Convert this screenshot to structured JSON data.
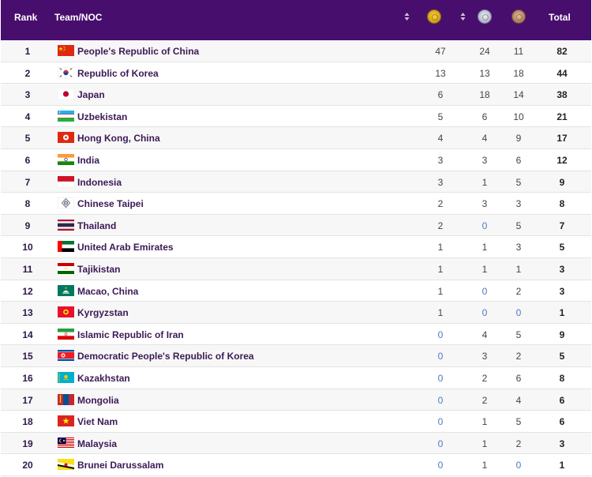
{
  "header": {
    "rank": "Rank",
    "team": "Team/NOC",
    "total": "Total"
  },
  "colors": {
    "header_bg": "#480e6e",
    "zero_value": "#4a7cc0"
  },
  "rows": [
    {
      "rank": "1",
      "team": "People's Republic of China",
      "flag": "china-flag-icon",
      "gold": "47",
      "silver": "24",
      "bronze": "11",
      "total": "82"
    },
    {
      "rank": "2",
      "team": "Republic of Korea",
      "flag": "korea-flag-icon",
      "gold": "13",
      "silver": "13",
      "bronze": "18",
      "total": "44"
    },
    {
      "rank": "3",
      "team": "Japan",
      "flag": "japan-flag-icon",
      "gold": "6",
      "silver": "18",
      "bronze": "14",
      "total": "38"
    },
    {
      "rank": "4",
      "team": "Uzbekistan",
      "flag": "uzbekistan-flag-icon",
      "gold": "5",
      "silver": "6",
      "bronze": "10",
      "total": "21"
    },
    {
      "rank": "5",
      "team": "Hong Kong, China",
      "flag": "hong-kong-flag-icon",
      "gold": "4",
      "silver": "4",
      "bronze": "9",
      "total": "17"
    },
    {
      "rank": "6",
      "team": "India",
      "flag": "india-flag-icon",
      "gold": "3",
      "silver": "3",
      "bronze": "6",
      "total": "12"
    },
    {
      "rank": "7",
      "team": "Indonesia",
      "flag": "indonesia-flag-icon",
      "gold": "3",
      "silver": "1",
      "bronze": "5",
      "total": "9"
    },
    {
      "rank": "8",
      "team": "Chinese Taipei",
      "flag": "chinese-taipei-flag-icon",
      "gold": "2",
      "silver": "3",
      "bronze": "3",
      "total": "8"
    },
    {
      "rank": "9",
      "team": "Thailand",
      "flag": "thailand-flag-icon",
      "gold": "2",
      "silver": "0",
      "bronze": "5",
      "total": "7"
    },
    {
      "rank": "10",
      "team": "United Arab Emirates",
      "flag": "uae-flag-icon",
      "gold": "1",
      "silver": "1",
      "bronze": "3",
      "total": "5"
    },
    {
      "rank": "11",
      "team": "Tajikistan",
      "flag": "tajikistan-flag-icon",
      "gold": "1",
      "silver": "1",
      "bronze": "1",
      "total": "3"
    },
    {
      "rank": "12",
      "team": "Macao, China",
      "flag": "macao-flag-icon",
      "gold": "1",
      "silver": "0",
      "bronze": "2",
      "total": "3"
    },
    {
      "rank": "13",
      "team": "Kyrgyzstan",
      "flag": "kyrgyzstan-flag-icon",
      "gold": "1",
      "silver": "0",
      "bronze": "0",
      "total": "1"
    },
    {
      "rank": "14",
      "team": "Islamic Republic of Iran",
      "flag": "iran-flag-icon",
      "gold": "0",
      "silver": "4",
      "bronze": "5",
      "total": "9"
    },
    {
      "rank": "15",
      "team": "Democratic People's Republic of Korea",
      "flag": "north-korea-flag-icon",
      "gold": "0",
      "silver": "3",
      "bronze": "2",
      "total": "5"
    },
    {
      "rank": "16",
      "team": "Kazakhstan",
      "flag": "kazakhstan-flag-icon",
      "gold": "0",
      "silver": "2",
      "bronze": "6",
      "total": "8"
    },
    {
      "rank": "17",
      "team": "Mongolia",
      "flag": "mongolia-flag-icon",
      "gold": "0",
      "silver": "2",
      "bronze": "4",
      "total": "6"
    },
    {
      "rank": "18",
      "team": "Viet Nam",
      "flag": "viet-nam-flag-icon",
      "gold": "0",
      "silver": "1",
      "bronze": "5",
      "total": "6"
    },
    {
      "rank": "19",
      "team": "Malaysia",
      "flag": "malaysia-flag-icon",
      "gold": "0",
      "silver": "1",
      "bronze": "2",
      "total": "3"
    },
    {
      "rank": "20",
      "team": "Brunei Darussalam",
      "flag": "brunei-flag-icon",
      "gold": "0",
      "silver": "1",
      "bronze": "0",
      "total": "1"
    }
  ]
}
